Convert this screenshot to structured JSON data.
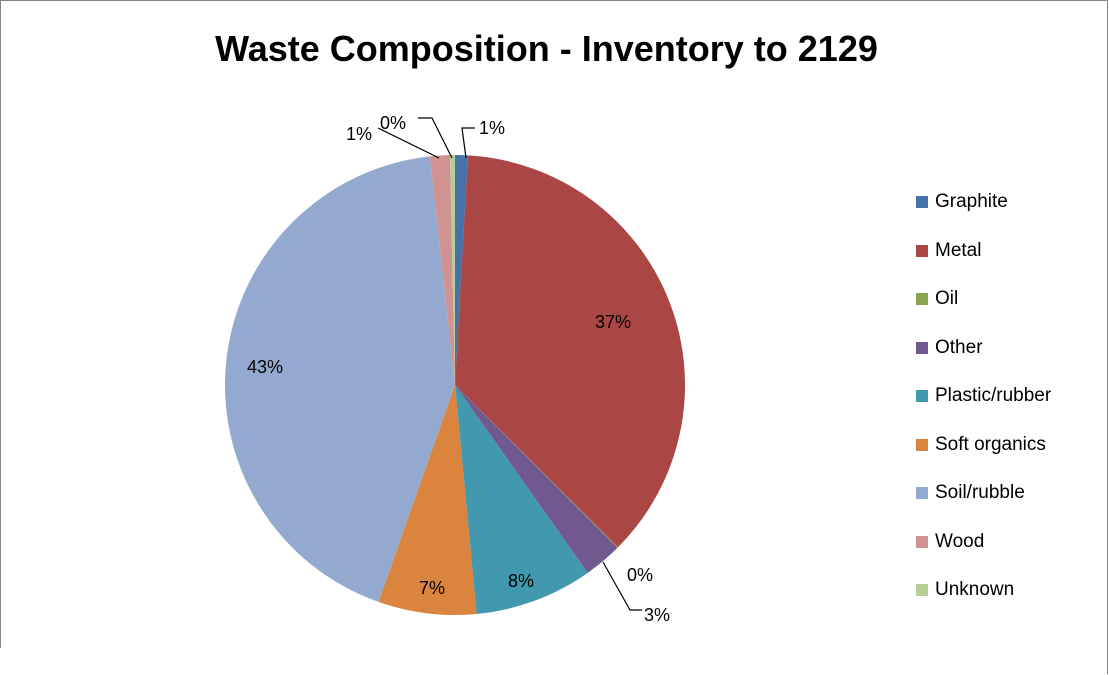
{
  "chart_data": {
    "type": "pie",
    "title": "Waste Composition - Inventory to 2129",
    "legend_position": "right",
    "slices": [
      {
        "name": "Graphite",
        "value": 0.9,
        "label": "1%",
        "color": "#4572A7"
      },
      {
        "name": "Metal",
        "value": 36.6,
        "label": "37%",
        "color": "#AA4643"
      },
      {
        "name": "Oil",
        "value": 0.05,
        "label": "0%",
        "color": "#89A54E"
      },
      {
        "name": "Other",
        "value": 2.7,
        "label": "3%",
        "color": "#71588F"
      },
      {
        "name": "Plastic/rubber",
        "value": 8.3,
        "label": "8%",
        "color": "#4198AF"
      },
      {
        "name": "Soft organics",
        "value": 6.9,
        "label": "7%",
        "color": "#DB843D"
      },
      {
        "name": "Soil/rubble",
        "value": 42.9,
        "label": "43%",
        "color": "#93A9CF"
      },
      {
        "name": "Wood",
        "value": 1.4,
        "label": "1%",
        "color": "#D19392"
      },
      {
        "name": "Unknown",
        "value": 0.35,
        "label": "0%",
        "color": "#B9CD96"
      }
    ]
  }
}
